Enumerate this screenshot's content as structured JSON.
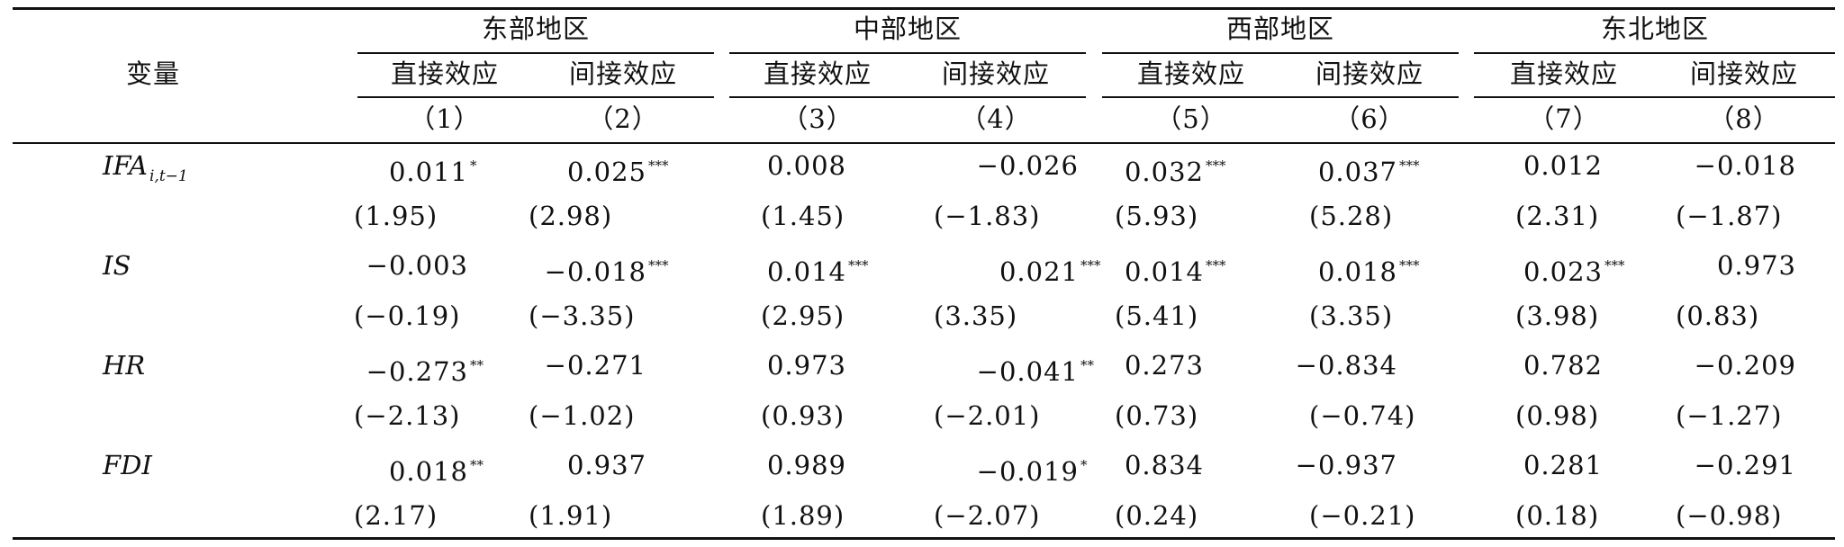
{
  "table": {
    "var_header": "变量",
    "regions": [
      "东部地区",
      "中部地区",
      "西部地区",
      "东北地区"
    ],
    "effects": [
      "直接效应",
      "间接效应",
      "直接效应",
      "间接效应",
      "直接效应",
      "间接效应",
      "直接效应",
      "间接效应"
    ],
    "col_numbers": [
      "（1）",
      "（2）",
      "（3）",
      "（4）",
      "（5）",
      "（6）",
      "（7）",
      "（8）"
    ],
    "rows": [
      {
        "var_main": "IFA",
        "var_sub": "i,t−1",
        "coef": [
          {
            "v": "0.011",
            "s": "*"
          },
          {
            "v": "0.025",
            "s": "***"
          },
          {
            "v": "0.008",
            "s": ""
          },
          {
            "v": "−0.026",
            "s": ""
          },
          {
            "v": "0.032",
            "s": "***"
          },
          {
            "v": "0.037",
            "s": "***"
          },
          {
            "v": "0.012",
            "s": ""
          },
          {
            "v": "−0.018",
            "s": ""
          }
        ],
        "t": [
          "(1.95)",
          "(2.98)",
          "(1.45)",
          "(−1.83)",
          "(5.93)",
          "(5.28)",
          "(2.31)",
          "(−1.87)"
        ]
      },
      {
        "var_main": "IS",
        "var_sub": "",
        "coef": [
          {
            "v": "−0.003",
            "s": ""
          },
          {
            "v": "−0.018",
            "s": "***"
          },
          {
            "v": "0.014",
            "s": "***"
          },
          {
            "v": "0.021",
            "s": "***"
          },
          {
            "v": "0.014",
            "s": "***"
          },
          {
            "v": "0.018",
            "s": "***"
          },
          {
            "v": "0.023",
            "s": "***"
          },
          {
            "v": "0.973",
            "s": ""
          }
        ],
        "t": [
          "(−0.19)",
          "(−3.35)",
          "(2.95)",
          "(3.35)",
          "(5.41)",
          "(3.35)",
          "(3.98)",
          "(0.83)"
        ]
      },
      {
        "var_main": "HR",
        "var_sub": "",
        "coef": [
          {
            "v": "−0.273",
            "s": "**"
          },
          {
            "v": "−0.271",
            "s": ""
          },
          {
            "v": "0.973",
            "s": ""
          },
          {
            "v": "−0.041",
            "s": "**"
          },
          {
            "v": "0.273",
            "s": ""
          },
          {
            "v": "−0.834",
            "s": ""
          },
          {
            "v": "0.782",
            "s": ""
          },
          {
            "v": "−0.209",
            "s": ""
          }
        ],
        "t": [
          "(−2.13)",
          "(−1.02)",
          "(0.93)",
          "(−2.01)",
          "(0.73)",
          "(−0.74)",
          "(0.98)",
          "(−1.27)"
        ]
      },
      {
        "var_main": "FDI",
        "var_sub": "",
        "coef": [
          {
            "v": "0.018",
            "s": "**"
          },
          {
            "v": "0.937",
            "s": ""
          },
          {
            "v": "0.989",
            "s": ""
          },
          {
            "v": "−0.019",
            "s": "*"
          },
          {
            "v": "0.834",
            "s": ""
          },
          {
            "v": "−0.937",
            "s": ""
          },
          {
            "v": "0.281",
            "s": ""
          },
          {
            "v": "−0.291",
            "s": ""
          }
        ],
        "t": [
          "(2.17)",
          "(1.91)",
          "(1.89)",
          "(−2.07)",
          "(0.24)",
          "(−0.21)",
          "(0.18)",
          "(−0.98)"
        ]
      }
    ]
  }
}
